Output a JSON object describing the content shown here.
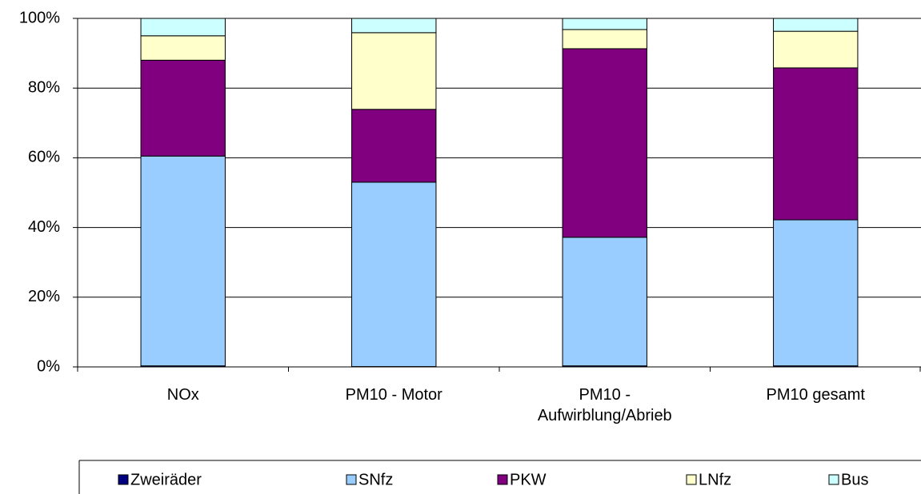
{
  "chart_data": {
    "type": "stacked_bar_100",
    "categories": [
      "NOx",
      "PM10 - Motor",
      "PM10 -\nAufwirblung/Abrieb",
      "PM10 gesamt"
    ],
    "series": [
      {
        "name": "Zweiräder",
        "color": "#000080",
        "values": [
          0.3,
          0.1,
          0.3,
          0.3
        ]
      },
      {
        "name": "SNfz",
        "color": "#99ccff",
        "values": [
          60.2,
          52.9,
          36.9,
          41.9
        ]
      },
      {
        "name": "PKW",
        "color": "#800080",
        "values": [
          27.5,
          20.9,
          54.1,
          43.6
        ]
      },
      {
        "name": "LNfz",
        "color": "#ffffcc",
        "values": [
          7,
          22,
          5.5,
          10.5
        ]
      },
      {
        "name": "Bus",
        "color": "#ccffff",
        "values": [
          5,
          4.1,
          3.2,
          3.7
        ]
      }
    ],
    "ylim": [
      0,
      100
    ],
    "yticks": [
      {
        "value": 0,
        "label": "0%"
      },
      {
        "value": 20,
        "label": "20%"
      },
      {
        "value": 40,
        "label": "40%"
      },
      {
        "value": 60,
        "label": "60%"
      },
      {
        "value": 80,
        "label": "80%"
      },
      {
        "value": 100,
        "label": "100%"
      }
    ],
    "grid": true,
    "legend": "bottom"
  }
}
